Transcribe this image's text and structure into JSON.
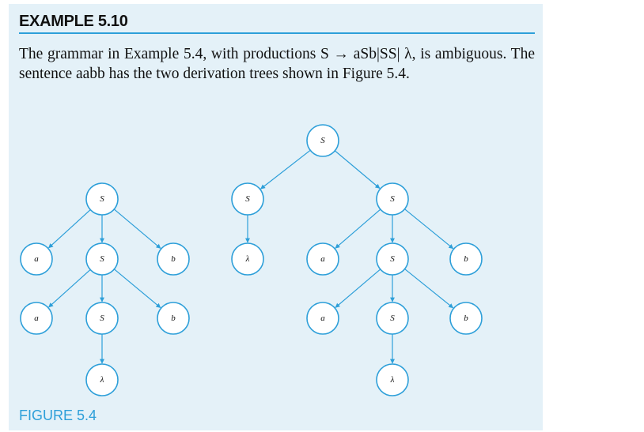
{
  "example": {
    "heading": "EXAMPLE 5.10",
    "paragraph": "The grammar in Example 5.4, with productions S → aSb|SS| λ, is ambiguous. The sentence aabb has the two derivation trees shown in Figure 5.4."
  },
  "figure": {
    "caption": "FIGURE 5.4",
    "accent_color": "#2d9fd9",
    "background_color": "#e4f1f8",
    "trees": [
      {
        "nodes": [
          {
            "id": "t1n0",
            "label": "S"
          },
          {
            "id": "t1n1",
            "label": "a"
          },
          {
            "id": "t1n2",
            "label": "S"
          },
          {
            "id": "t1n3",
            "label": "b"
          },
          {
            "id": "t1n4",
            "label": "a"
          },
          {
            "id": "t1n5",
            "label": "S"
          },
          {
            "id": "t1n6",
            "label": "b"
          },
          {
            "id": "t1n7",
            "label": "λ"
          }
        ],
        "edges": [
          [
            "t1n0",
            "t1n1"
          ],
          [
            "t1n0",
            "t1n2"
          ],
          [
            "t1n0",
            "t1n3"
          ],
          [
            "t1n2",
            "t1n4"
          ],
          [
            "t1n2",
            "t1n5"
          ],
          [
            "t1n2",
            "t1n6"
          ],
          [
            "t1n5",
            "t1n7"
          ]
        ]
      },
      {
        "nodes": [
          {
            "id": "t2n0",
            "label": "S"
          },
          {
            "id": "t2n1",
            "label": "S"
          },
          {
            "id": "t2n2",
            "label": "S"
          },
          {
            "id": "t2n3",
            "label": "λ"
          },
          {
            "id": "t2n4",
            "label": "a"
          },
          {
            "id": "t2n5",
            "label": "S"
          },
          {
            "id": "t2n6",
            "label": "b"
          },
          {
            "id": "t2n7",
            "label": "a"
          },
          {
            "id": "t2n8",
            "label": "S"
          },
          {
            "id": "t2n9",
            "label": "b"
          },
          {
            "id": "t2n10",
            "label": "λ"
          }
        ],
        "edges": [
          [
            "t2n0",
            "t2n1"
          ],
          [
            "t2n0",
            "t2n2"
          ],
          [
            "t2n1",
            "t2n3"
          ],
          [
            "t2n2",
            "t2n4"
          ],
          [
            "t2n2",
            "t2n5"
          ],
          [
            "t2n2",
            "t2n6"
          ],
          [
            "t2n5",
            "t2n7"
          ],
          [
            "t2n5",
            "t2n8"
          ],
          [
            "t2n5",
            "t2n9"
          ],
          [
            "t2n8",
            "t2n10"
          ]
        ]
      }
    ]
  }
}
